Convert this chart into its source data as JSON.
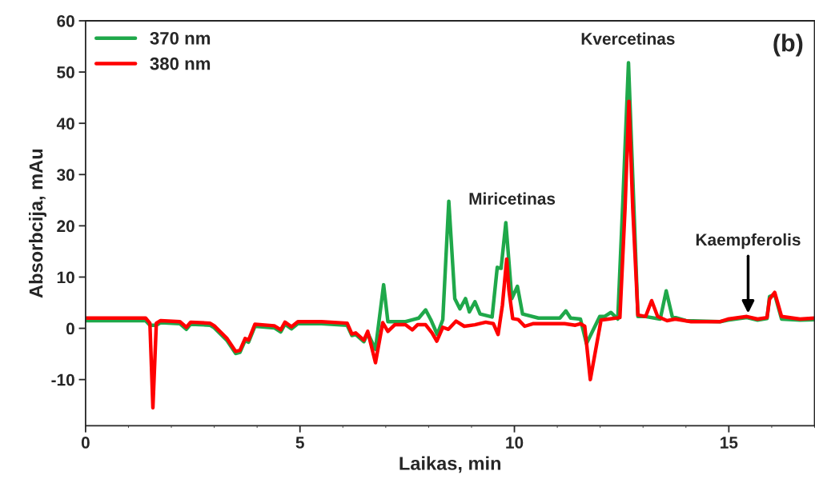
{
  "chart_data": {
    "type": "line",
    "xlabel": "Laikas, min",
    "ylabel": "Absorbcija, mAu",
    "xlim": [
      0,
      17
    ],
    "xticks": [
      0,
      5,
      10,
      15
    ],
    "ylim": [
      -19,
      60
    ],
    "yticks": [
      -10,
      0,
      10,
      20,
      30,
      40,
      50,
      60
    ],
    "grid": false,
    "legend": "top left",
    "line_style": "solid",
    "marker": "none",
    "series": [
      {
        "name": "370 nm",
        "color": "#1fa84a",
        "x": [
          0,
          1.4,
          1.5,
          1.65,
          1.75,
          2.2,
          2.35,
          2.45,
          2.9,
          3.0,
          3.3,
          3.5,
          3.6,
          3.72,
          3.8,
          3.95,
          4.4,
          4.55,
          4.65,
          4.8,
          4.95,
          5.5,
          6.1,
          6.21,
          6.3,
          6.49,
          6.58,
          6.76,
          6.95,
          7.05,
          7.46,
          7.64,
          7.77,
          7.93,
          8.05,
          8.2,
          8.33,
          8.47,
          8.61,
          8.73,
          8.86,
          8.95,
          9.08,
          9.2,
          9.48,
          9.6,
          9.69,
          9.8,
          9.94,
          10.07,
          10.19,
          10.56,
          11.06,
          11.2,
          11.31,
          11.54,
          11.68,
          11.99,
          12.1,
          12.25,
          12.41,
          12.53,
          12.66,
          12.78,
          12.88,
          13.06,
          13.4,
          13.54,
          13.68,
          14.0,
          14.8,
          14.98,
          15.42,
          15.67,
          15.89,
          15.95,
          16.07,
          16.23,
          16.66,
          17
        ],
        "values": [
          1.5,
          1.5,
          0.6,
          0.6,
          1.1,
          0.9,
          -0.2,
          0.8,
          0.6,
          0.1,
          -2.4,
          -4.9,
          -4.7,
          -2.4,
          -2.7,
          0.4,
          0.1,
          -0.7,
          0.8,
          -0.1,
          0.9,
          0.9,
          0.6,
          -1.4,
          -1.2,
          -2.6,
          -0.9,
          -4.1,
          8.5,
          1.3,
          1.3,
          1.7,
          2.0,
          3.6,
          1.7,
          -1.2,
          1.7,
          24.8,
          5.8,
          3.8,
          5.8,
          3.2,
          5.2,
          2.8,
          2.2,
          11.9,
          11.7,
          20.6,
          5.8,
          8.2,
          2.8,
          2.0,
          2.0,
          3.4,
          2.0,
          1.8,
          -3.0,
          2.3,
          2.3,
          3.1,
          1.8,
          25,
          51.8,
          25,
          2.3,
          2.3,
          1.8,
          7.3,
          2.3,
          1.5,
          1.3,
          1.6,
          2.1,
          1.6,
          1.9,
          6.2,
          6.6,
          1.8,
          1.6,
          1.7
        ]
      },
      {
        "name": "380 nm",
        "color": "#ff0000",
        "x": [
          0,
          1.4,
          1.5,
          1.57,
          1.65,
          1.75,
          2.2,
          2.35,
          2.45,
          2.9,
          3.0,
          3.3,
          3.5,
          3.6,
          3.72,
          3.8,
          3.95,
          4.4,
          4.55,
          4.65,
          4.8,
          4.95,
          5.5,
          6.1,
          6.21,
          6.3,
          6.49,
          6.58,
          6.76,
          6.93,
          7.05,
          7.21,
          7.46,
          7.62,
          7.74,
          7.93,
          8.08,
          8.19,
          8.33,
          8.46,
          8.64,
          8.83,
          9.08,
          9.33,
          9.51,
          9.62,
          9.72,
          9.82,
          9.87,
          9.96,
          10.09,
          10.24,
          10.43,
          11.17,
          11.42,
          11.54,
          11.64,
          11.77,
          12.02,
          12.46,
          12.58,
          12.67,
          12.76,
          12.88,
          13.06,
          13.2,
          13.34,
          13.56,
          13.75,
          14.12,
          14.8,
          14.98,
          15.42,
          15.67,
          15.89,
          15.95,
          16.07,
          16.23,
          16.66,
          17
        ],
        "values": [
          2,
          2,
          1,
          -15.5,
          1,
          1.5,
          1.3,
          0.2,
          1.2,
          1,
          0.5,
          -2,
          -4.5,
          -4.3,
          -2,
          -2.3,
          0.8,
          0.5,
          -0.3,
          1.2,
          0.3,
          1.3,
          1.3,
          1.0,
          -1.1,
          -0.9,
          -2.3,
          -0.6,
          -6.7,
          1.1,
          -0.6,
          0.7,
          0.7,
          -0.3,
          0.7,
          0.7,
          -0.9,
          -2.5,
          0.2,
          -0.2,
          1.4,
          0.4,
          0.7,
          1.2,
          0.9,
          -1.2,
          4.5,
          13.5,
          7.6,
          1.9,
          1.7,
          0.4,
          0.9,
          0.9,
          0.6,
          0.9,
          0.4,
          -10,
          1.6,
          2.1,
          23.4,
          44.3,
          23.4,
          2.6,
          2.3,
          5.4,
          2.3,
          1.5,
          1.8,
          1.3,
          1.3,
          1.8,
          2.3,
          1.8,
          2.1,
          5.7,
          7.0,
          2.3,
          1.8,
          2.0
        ]
      }
    ],
    "annotations": [
      "Miricetinas",
      "Kvercetinas",
      {
        "text": "Kaempferolis",
        "x": 15.45,
        "y": 2.5
      },
      "(b)"
    ]
  }
}
